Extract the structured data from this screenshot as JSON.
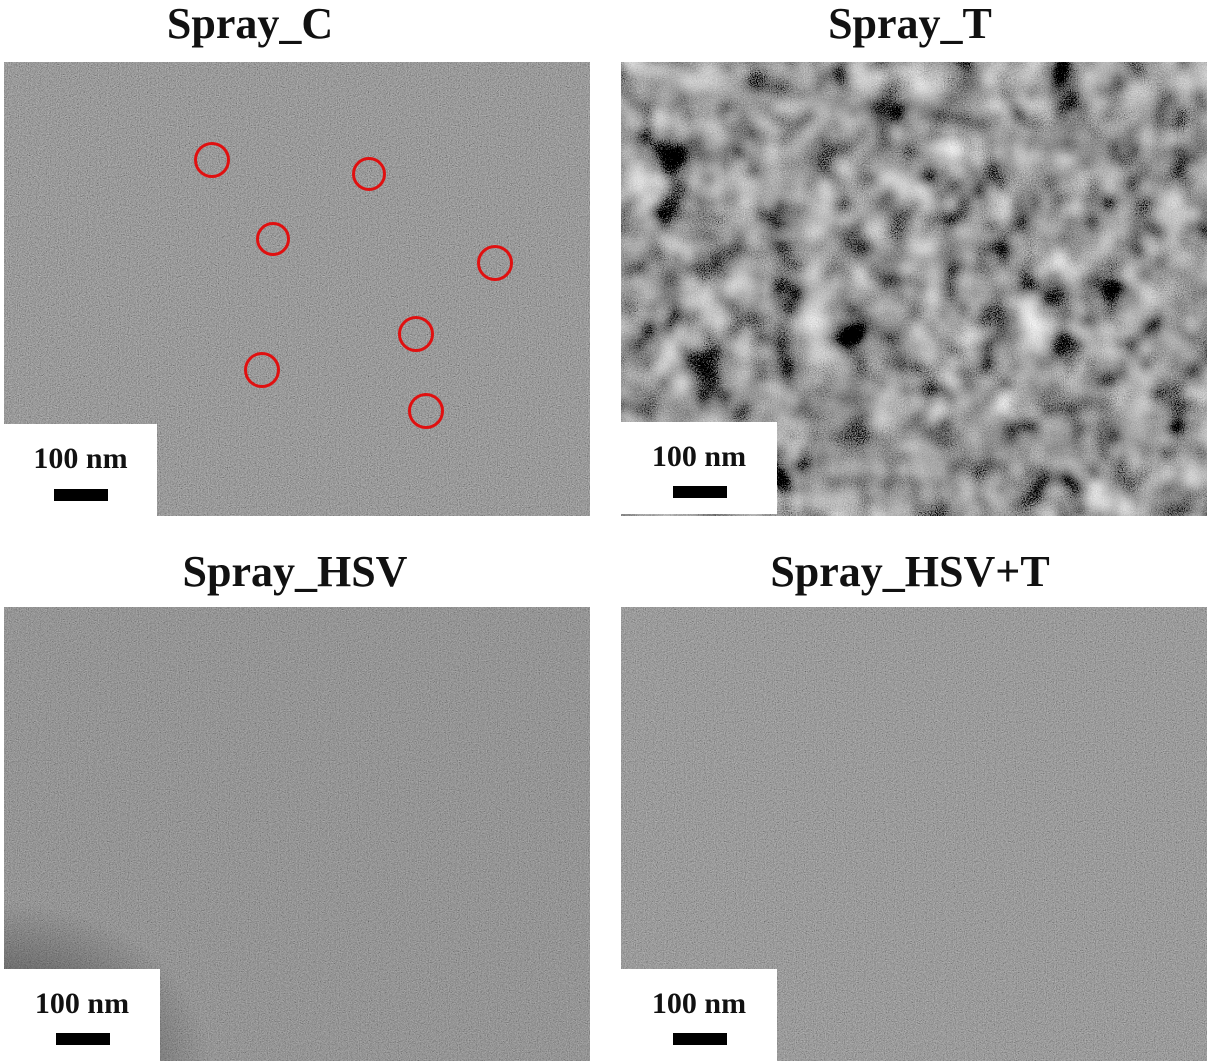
{
  "panels": [
    {
      "title": "Spray_C",
      "scale_label": "100 nm"
    },
    {
      "title": "Spray_T",
      "scale_label": "100 nm"
    },
    {
      "title": "Spray_HSV",
      "scale_label": "100 nm"
    },
    {
      "title": "Spray_HSV+T",
      "scale_label": "100 nm"
    }
  ],
  "colors": {
    "marker": "#e01010"
  }
}
